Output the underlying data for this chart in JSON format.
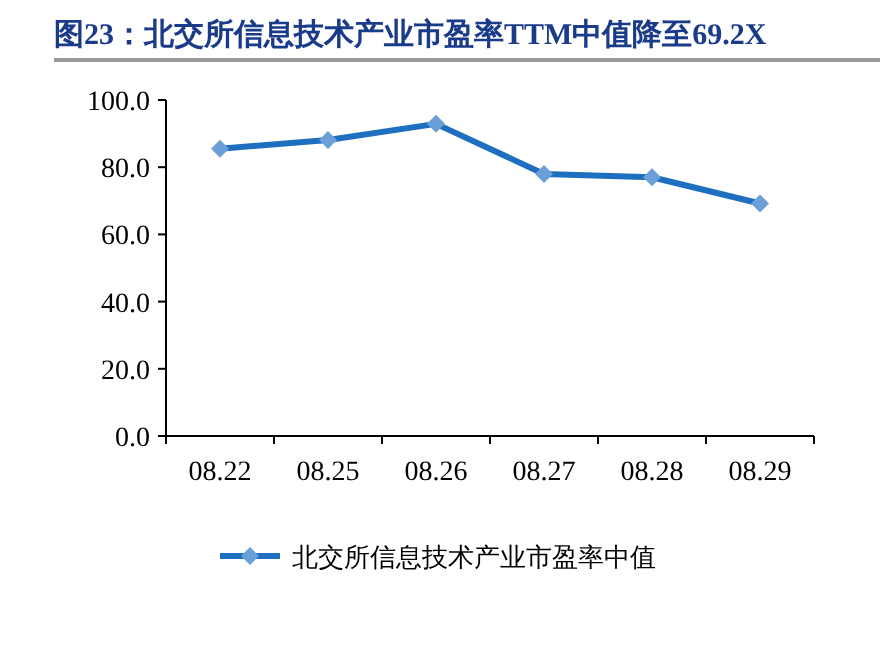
{
  "chart_data": {
    "type": "line",
    "title": "图23：北交所信息技术产业市盈率TTM中值降至69.2X",
    "categories": [
      "08.22",
      "08.25",
      "08.26",
      "08.27",
      "08.28",
      "08.29"
    ],
    "series": [
      {
        "name": "北交所信息技术产业市盈率中值",
        "color": "#1f6fc0",
        "values": [
          85.5,
          88.1,
          92.9,
          78.0,
          77.0,
          69.2
        ]
      }
    ],
    "ylim": [
      0,
      100
    ],
    "yticks": [
      {
        "value": 0,
        "label": "0.0"
      },
      {
        "value": 20,
        "label": "20.0"
      },
      {
        "value": 40,
        "label": "40.0"
      },
      {
        "value": 60,
        "label": "60.0"
      },
      {
        "value": 80,
        "label": "80.0"
      },
      {
        "value": 100,
        "label": "100.0"
      }
    ],
    "marker": "diamond",
    "line_style": "solid",
    "legend": "bottom",
    "grid": false
  }
}
